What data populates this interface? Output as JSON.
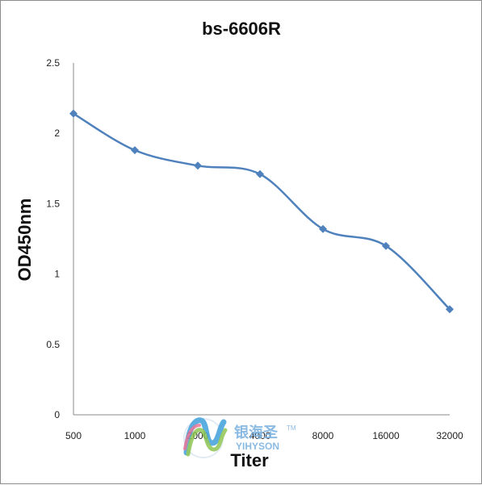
{
  "chart_data": {
    "type": "line",
    "title": "bs-6606R",
    "xlabel": "Titer",
    "ylabel": "OD450nm",
    "categories": [
      "500",
      "1000",
      "2000",
      "4000",
      "8000",
      "16000",
      "32000"
    ],
    "series": [
      {
        "values": [
          2.14,
          1.88,
          1.77,
          1.71,
          1.32,
          1.2,
          0.75
        ],
        "color": "#4f81bd"
      }
    ],
    "ylim": [
      0,
      2.5
    ],
    "yticks": [
      "0",
      "0.5",
      "1",
      "1.5",
      "2",
      "2.5"
    ],
    "grid": false,
    "legend": "none",
    "marker": "diamond",
    "smooth": true
  },
  "watermark": {
    "name_cn": "银海圣",
    "name_en": "YIHYSON",
    "tm": "TM"
  }
}
